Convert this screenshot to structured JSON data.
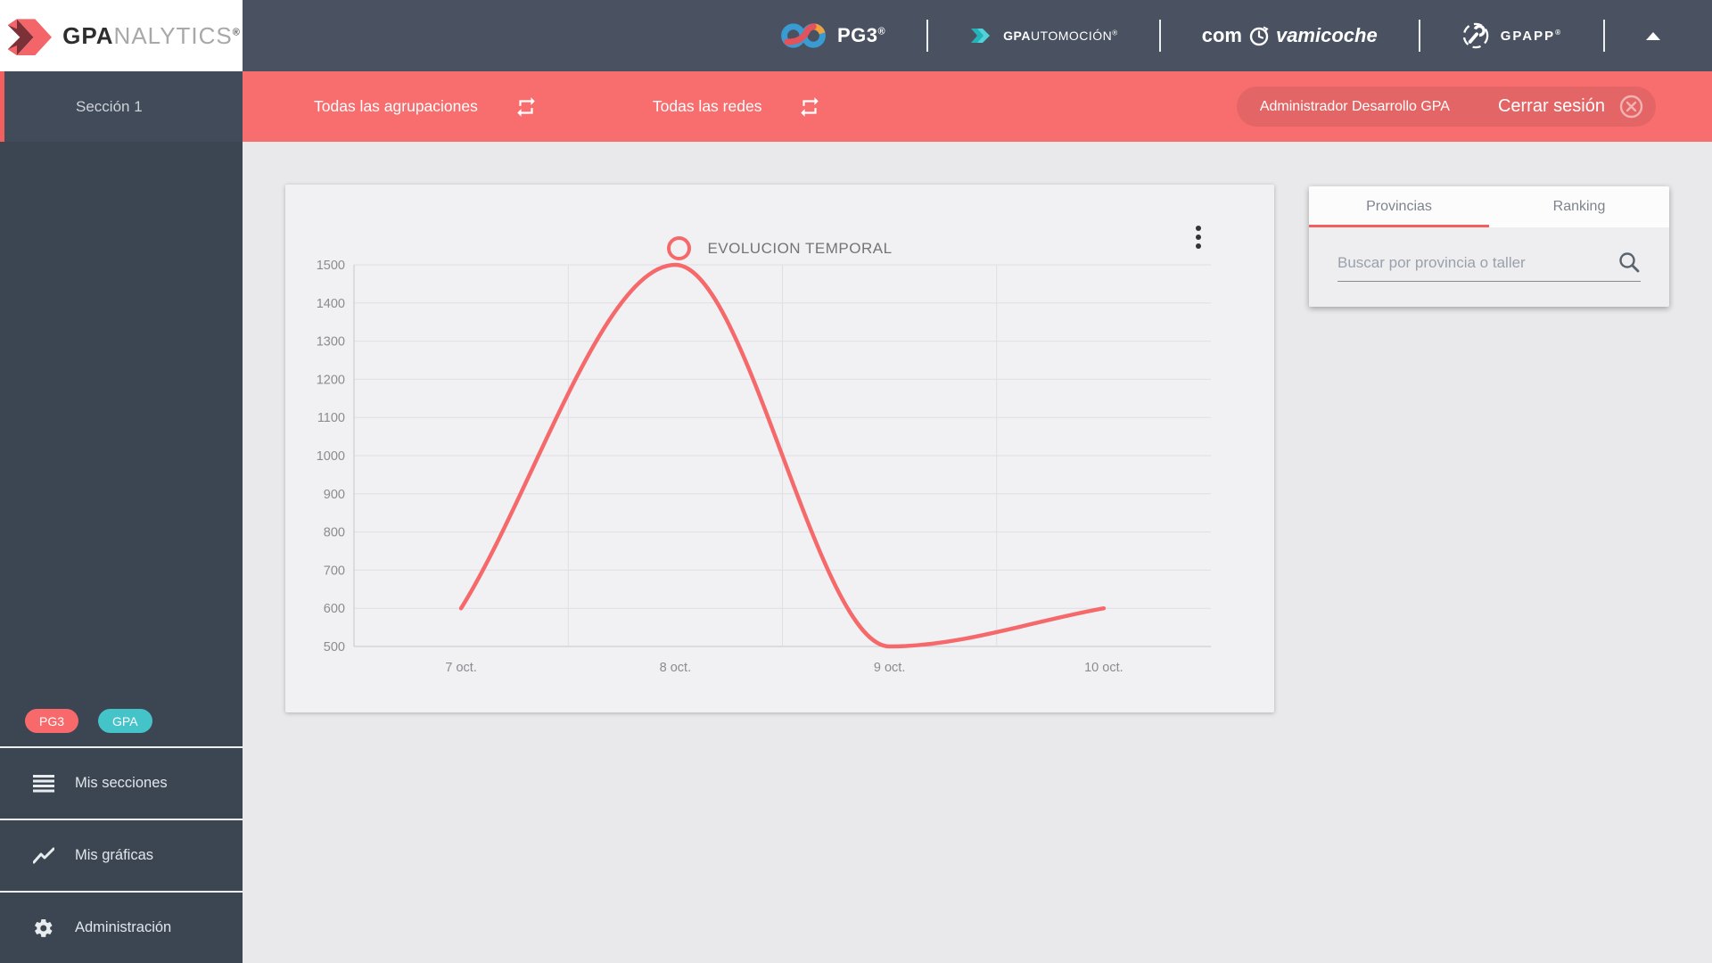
{
  "brand": {
    "bold": "GPA",
    "light": "NALYTICS",
    "reg": "®"
  },
  "header": {
    "pg3": {
      "label": "PG3",
      "reg": "®"
    },
    "gpautomocion": {
      "bold": "GPA",
      "rest": "UTOMOCIÓN",
      "reg": "®"
    },
    "comprovamicoche": {
      "pre": "com",
      "post": "vamicoche"
    },
    "gpapp": {
      "label": "GPAPP",
      "reg": "®"
    }
  },
  "sidebar": {
    "section": "Sección 1",
    "badges": [
      {
        "label": "PG3",
        "color": "#f8696b"
      },
      {
        "label": "GPA",
        "color": "#44c3c9"
      }
    ],
    "menu": [
      {
        "label": "Mis secciones",
        "icon": "menu-icon"
      },
      {
        "label": "Mis gráficas",
        "icon": "chart-line-icon"
      },
      {
        "label": "Administración",
        "icon": "gear-icon"
      }
    ]
  },
  "filterbar": {
    "filters": [
      {
        "label": "Todas las agrupaciones"
      },
      {
        "label": "Todas las redes"
      }
    ],
    "user": "Administrador Desarrollo GPA",
    "logout": "Cerrar sesión",
    "accent": "#f86e6e"
  },
  "chart_data": {
    "type": "line",
    "title": "EVOLUCION TEMPORAL",
    "categories": [
      "7 oct.",
      "8 oct.",
      "9 oct.",
      "10 oct."
    ],
    "series": [
      {
        "name": "EVOLUCION TEMPORAL",
        "values": [
          600,
          1500,
          500,
          600
        ],
        "color": "#f5696b"
      }
    ],
    "ylim": [
      500,
      1500
    ],
    "ytick_step": 100,
    "xlabel": "",
    "ylabel": "",
    "grid": true,
    "legend_position": "top",
    "smoothing": "monotone"
  },
  "panel": {
    "tabs": [
      {
        "label": "Provincias",
        "active": true
      },
      {
        "label": "Ranking",
        "active": false
      }
    ],
    "search_placeholder": "Buscar por provincia o taller"
  }
}
